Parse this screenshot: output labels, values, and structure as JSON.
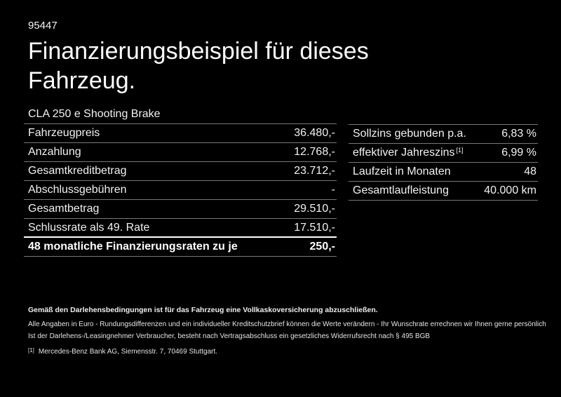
{
  "page": {
    "ref_number": "95447",
    "title_line1": "Finanzierungsbeispiel für dieses",
    "title_line2": "Fahrzeug."
  },
  "finance_table": {
    "header": "CLA 250 e Shooting Brake",
    "rows": [
      {
        "label": "Fahrzeugpreis",
        "value": "36.480,-"
      },
      {
        "label": "Anzahlung",
        "value": "12.768,-"
      },
      {
        "label": "Gesamtkreditbetrag",
        "value": "23.712,-"
      },
      {
        "label": "Abschlussgebühren",
        "value": "-"
      },
      {
        "label": "Gesamtbetrag",
        "value": "29.510,-"
      },
      {
        "label": "Schlussrate als 49. Rate",
        "value": "17.510,-"
      },
      {
        "label": "48 monatliche Finanzierungsraten zu je",
        "value": "250,-"
      }
    ]
  },
  "conditions_table": {
    "rows": [
      {
        "label": "Sollzins gebunden p.a.",
        "sup": "",
        "value": "6,83 %"
      },
      {
        "label": "effektiver Jahreszins",
        "sup": "[1]",
        "value": "6,99 %"
      },
      {
        "label": "Laufzeit in Monaten",
        "sup": "",
        "value": "48"
      },
      {
        "label": "Gesamtlaufleistung",
        "sup": "",
        "value": "40.000 km"
      }
    ]
  },
  "footer": {
    "bold_note": "Gemäß den Darlehensbedingungen ist für das Fahrzeug eine Vollkaskoversicherung abzuschließen.",
    "note1": "Alle Angaben in Euro - Rundungsdifferenzen und ein individueller Kreditschutzbrief können die Werte verändern - Ihr Wunschrate errechnen wir Ihnen gerne persönlich",
    "note2": "Ist der Darlehens-/Leasingnehmer Verbraucher, besteht nach Vertragsabschluss ein gesetzliches Widerrufsrecht nach § 495 BGB",
    "footnote_marker": "[1]",
    "footnote_text": "Mercedes-Benz Bank AG, Siemensstr. 7, 70469 Stuttgart."
  },
  "colors": {
    "background": "#000000",
    "text": "#ffffff",
    "separator": "#787878",
    "highlight_separator": "#ffffff"
  }
}
